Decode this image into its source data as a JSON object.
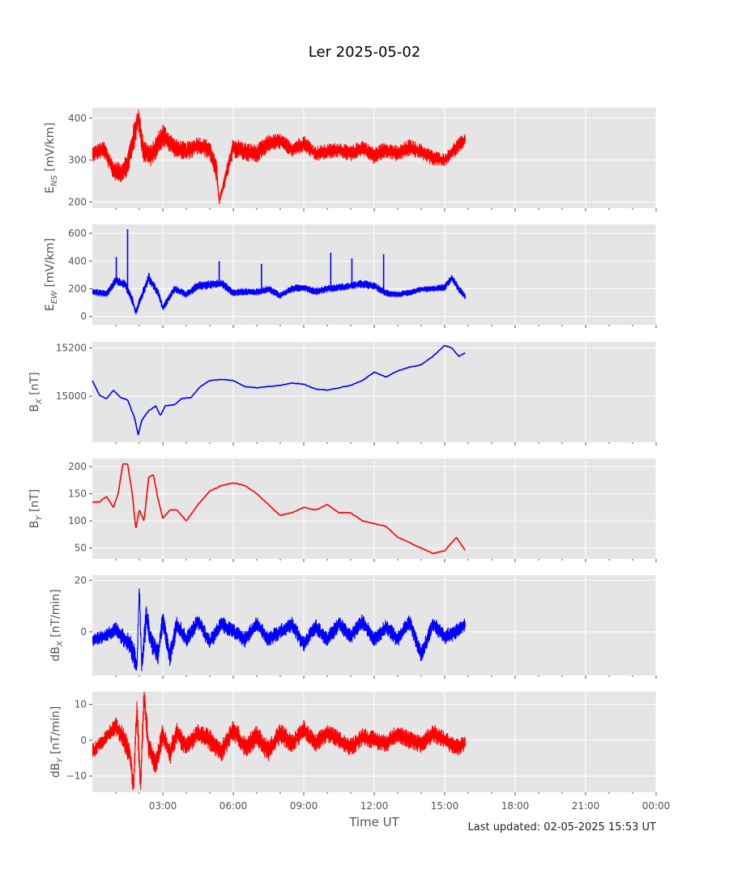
{
  "title": "Ler 2025-05-02",
  "xlabel": "Time UT",
  "footer": "Last updated: 02-05-2025 15:53 UT",
  "chart_data": {
    "type": "line",
    "title": "Ler 2025-05-02",
    "xlabel": "Time UT",
    "x_units": "hours UT",
    "xlim": [
      0,
      24
    ],
    "x_ticks": [
      3,
      6,
      9,
      12,
      15,
      18,
      21,
      24
    ],
    "x_tick_labels": [
      "03:00",
      "06:00",
      "09:00",
      "12:00",
      "15:00",
      "18:00",
      "21:00",
      "00:00"
    ],
    "colors": {
      "red": "#ff0000",
      "blue": "#0000ff"
    },
    "panels": [
      {
        "id": "ens",
        "ylabel_main": "E",
        "ylabel_sub": "NS",
        "ylabel_tail": " [mV/km]",
        "ylim": [
          185,
          425
        ],
        "yticks": [
          200,
          300,
          400
        ],
        "color": "#ff0000",
        "series": {
          "x": [
            0,
            0.5,
            0.9,
            1.2,
            1.5,
            1.75,
            1.95,
            2.2,
            2.5,
            3.0,
            3.5,
            4.0,
            4.5,
            5.0,
            5.3,
            5.4,
            6.0,
            6.5,
            7.0,
            7.5,
            8.0,
            8.5,
            9.0,
            9.5,
            10.0,
            10.5,
            11.0,
            11.5,
            12.0,
            12.5,
            13.0,
            13.5,
            14.0,
            14.5,
            15.0,
            15.5,
            15.88
          ],
          "y": [
            315,
            325,
            275,
            270,
            290,
            350,
            400,
            320,
            310,
            360,
            330,
            320,
            335,
            325,
            270,
            200,
            330,
            320,
            315,
            340,
            345,
            325,
            340,
            315,
            320,
            325,
            315,
            330,
            310,
            325,
            315,
            330,
            320,
            305,
            300,
            330,
            350
          ],
          "band": [
            18,
            20,
            22,
            24,
            28,
            35,
            30,
            30,
            25,
            28,
            22,
            22,
            22,
            22,
            25,
            8,
            24,
            22,
            22,
            20,
            18,
            18,
            20,
            18,
            18,
            18,
            18,
            18,
            20,
            20,
            18,
            20,
            18,
            18,
            15,
            18,
            15
          ]
        }
      },
      {
        "id": "eew",
        "ylabel_main": "E",
        "ylabel_sub": "EW",
        "ylabel_tail": " [mV/km]",
        "ylim": [
          -60,
          665
        ],
        "yticks": [
          0,
          200,
          400,
          600
        ],
        "color": "#0000ff",
        "series": {
          "x": [
            0,
            0.6,
            1.0,
            1.4,
            1.7,
            1.85,
            2.0,
            2.4,
            2.8,
            3.0,
            3.5,
            4.0,
            4.5,
            5.0,
            5.5,
            6.0,
            6.5,
            7.0,
            7.5,
            8.0,
            8.5,
            9.0,
            9.5,
            10.0,
            10.5,
            11.0,
            11.5,
            12.0,
            12.5,
            13.0,
            13.5,
            14.0,
            14.5,
            15.0,
            15.3,
            15.6,
            15.88
          ],
          "y": [
            180,
            160,
            260,
            230,
            120,
            30,
            100,
            280,
            170,
            60,
            200,
            160,
            220,
            230,
            240,
            170,
            180,
            175,
            200,
            150,
            200,
            210,
            180,
            200,
            210,
            220,
            235,
            220,
            170,
            160,
            170,
            195,
            200,
            210,
            280,
            200,
            140
          ],
          "band": [
            25,
            25,
            30,
            30,
            30,
            25,
            30,
            35,
            30,
            25,
            25,
            25,
            30,
            30,
            30,
            25,
            25,
            25,
            25,
            25,
            25,
            25,
            25,
            25,
            25,
            25,
            30,
            25,
            25,
            20,
            20,
            20,
            20,
            25,
            25,
            25,
            20
          ]
        },
        "spikes": [
          {
            "x": 1.02,
            "y": 430
          },
          {
            "x": 1.5,
            "y": 630
          },
          {
            "x": 5.4,
            "y": 400
          },
          {
            "x": 7.2,
            "y": 380
          },
          {
            "x": 10.15,
            "y": 460
          },
          {
            "x": 11.05,
            "y": 420
          },
          {
            "x": 12.4,
            "y": 450
          }
        ]
      },
      {
        "id": "bx",
        "ylabel_main": "B",
        "ylabel_sub": "X",
        "ylabel_tail": " [nT]",
        "ylim": [
          14810,
          15225
        ],
        "yticks": [
          15000,
          15200
        ],
        "color": "#0000ff",
        "series": {
          "x": [
            0,
            0.3,
            0.6,
            0.9,
            1.2,
            1.5,
            1.8,
            1.95,
            2.1,
            2.4,
            2.7,
            2.9,
            3.1,
            3.5,
            3.8,
            4.2,
            4.6,
            5.0,
            5.5,
            6.0,
            6.5,
            7.0,
            7.5,
            8.0,
            8.5,
            9.0,
            9.5,
            10.0,
            10.5,
            11.0,
            11.5,
            12.0,
            12.5,
            13.0,
            13.5,
            14.0,
            14.5,
            15.0,
            15.3,
            15.6,
            15.88
          ],
          "y": [
            15065,
            15005,
            14990,
            15025,
            14995,
            14985,
            14910,
            14840,
            14900,
            14940,
            14960,
            14920,
            14960,
            14965,
            14990,
            14995,
            15040,
            15065,
            15070,
            15065,
            15040,
            15035,
            15040,
            15045,
            15055,
            15050,
            15030,
            15025,
            15035,
            15045,
            15065,
            15100,
            15080,
            15105,
            15120,
            15130,
            15165,
            15210,
            15200,
            15165,
            15180
          ]
        }
      },
      {
        "id": "by",
        "ylabel_main": "B",
        "ylabel_sub": "Y",
        "ylabel_tail": " [nT]",
        "ylim": [
          30,
          215
        ],
        "yticks": [
          50,
          100,
          150,
          200
        ],
        "color": "#ff0000",
        "series": {
          "x": [
            0,
            0.3,
            0.6,
            0.9,
            1.1,
            1.3,
            1.5,
            1.7,
            1.85,
            2.0,
            2.2,
            2.4,
            2.6,
            2.8,
            3.0,
            3.3,
            3.6,
            4.0,
            4.5,
            5.0,
            5.5,
            6.0,
            6.5,
            7.0,
            7.5,
            8.0,
            8.5,
            9.0,
            9.5,
            10.0,
            10.5,
            11.0,
            11.5,
            12.0,
            12.5,
            13.0,
            13.5,
            14.0,
            14.5,
            15.0,
            15.5,
            15.88
          ],
          "y": [
            135,
            135,
            145,
            125,
            150,
            205,
            205,
            150,
            85,
            120,
            100,
            180,
            185,
            140,
            105,
            120,
            120,
            100,
            130,
            155,
            165,
            170,
            165,
            150,
            130,
            110,
            115,
            125,
            120,
            130,
            115,
            115,
            100,
            95,
            90,
            70,
            60,
            50,
            40,
            45,
            70,
            45
          ]
        }
      },
      {
        "id": "dbx",
        "ylabel_main": "dB",
        "ylabel_sub": "X",
        "ylabel_tail": " [nT/min]",
        "ylim": [
          -17,
          22
        ],
        "yticks": [
          0,
          20
        ],
        "color": "#0000ff",
        "series": {
          "x": [
            0,
            0.5,
            1.0,
            1.5,
            1.75,
            1.9,
            2.0,
            2.1,
            2.3,
            2.5,
            2.8,
            3.0,
            3.3,
            3.6,
            4.0,
            4.5,
            5.0,
            5.5,
            6.0,
            6.5,
            7.0,
            7.5,
            8.0,
            8.5,
            9.0,
            9.5,
            10.0,
            10.5,
            11.0,
            11.5,
            12.0,
            12.5,
            13.0,
            13.5,
            14.0,
            14.5,
            15.0,
            15.5,
            15.88
          ],
          "y": [
            -3,
            -2,
            1,
            -4,
            -8,
            -14,
            18,
            -13,
            6,
            -4,
            -9,
            5,
            -10,
            3,
            -3,
            4,
            -4,
            3,
            0,
            -3,
            3,
            -3,
            0,
            3,
            -5,
            2,
            -3,
            3,
            -2,
            4,
            -3,
            2,
            -3,
            4,
            -9,
            3,
            -2,
            0,
            3
          ],
          "band": [
            2.5,
            2.5,
            3,
            4,
            5,
            4,
            3,
            4,
            5,
            4,
            4,
            4,
            4,
            3.5,
            3,
            3,
            3,
            3,
            3,
            3,
            3,
            3,
            3,
            3,
            3,
            3,
            3,
            3,
            3,
            3,
            3,
            3,
            3,
            3,
            3,
            3,
            3,
            3,
            2.5
          ]
        }
      },
      {
        "id": "dby",
        "ylabel_main": "dB",
        "ylabel_sub": "Y",
        "ylabel_tail": " [nT/min]",
        "ylim": [
          -14.5,
          13.5
        ],
        "yticks": [
          -10,
          0,
          10
        ],
        "color": "#ff0000",
        "series": {
          "x": [
            0,
            0.5,
            1.0,
            1.3,
            1.6,
            1.75,
            1.9,
            2.05,
            2.2,
            2.4,
            2.7,
            3.0,
            3.3,
            3.6,
            4.0,
            4.5,
            5.0,
            5.5,
            6.0,
            6.5,
            7.0,
            7.5,
            8.0,
            8.5,
            9.0,
            9.5,
            10.0,
            10.5,
            11.0,
            11.5,
            12.0,
            12.5,
            13.0,
            13.5,
            14.0,
            14.5,
            15.0,
            15.5,
            15.88
          ],
          "y": [
            -3,
            0,
            4,
            1,
            -4,
            -13,
            9,
            -13,
            12,
            -2,
            -7,
            2,
            -4,
            2,
            -2,
            2,
            0,
            -3,
            3,
            -2,
            1,
            -3,
            2,
            -1,
            3,
            -1,
            2,
            0,
            -2,
            1,
            0,
            -1,
            2,
            0,
            -1,
            2,
            0,
            -2,
            -1
          ],
          "band": [
            2,
            2,
            2.5,
            3,
            3,
            3,
            4,
            3,
            4,
            3,
            3,
            3,
            3,
            3,
            2.5,
            2.5,
            3,
            3,
            3,
            3,
            3,
            3,
            3,
            2.5,
            2.5,
            2.5,
            2.5,
            2.5,
            2.5,
            2.5,
            2.5,
            2.5,
            2.5,
            2.5,
            2.5,
            2.5,
            2.5,
            2.5,
            2
          ]
        }
      }
    ]
  }
}
